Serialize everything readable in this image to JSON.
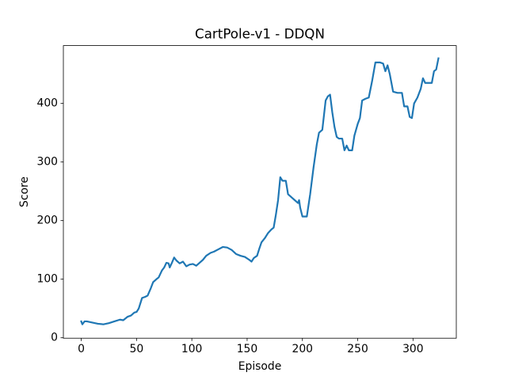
{
  "chart_data": {
    "type": "line",
    "title": "CartPole-v1 - DDQN",
    "x_label": "Episode",
    "y_label": "Score",
    "color": "#1f77b4",
    "x": [
      0,
      1,
      3,
      5,
      10,
      15,
      20,
      25,
      30,
      35,
      38,
      42,
      45,
      48,
      50,
      52,
      55,
      58,
      60,
      63,
      65,
      68,
      70,
      73,
      75,
      77,
      79,
      80,
      82,
      84,
      86,
      89,
      92,
      95,
      98,
      101,
      104,
      107,
      110,
      113,
      117,
      120,
      124,
      128,
      132,
      136,
      140,
      144,
      148,
      152,
      154,
      156,
      159,
      161,
      163,
      166,
      169,
      172,
      174,
      176,
      178,
      180,
      182,
      185,
      187,
      190,
      193,
      196,
      197,
      198,
      200,
      204,
      207,
      210,
      213,
      215,
      218,
      221,
      223,
      225,
      227,
      229,
      231,
      233,
      236,
      238,
      240,
      242,
      245,
      247,
      250,
      252,
      254,
      257,
      260,
      263,
      266,
      270,
      273,
      275,
      277,
      279,
      282,
      286,
      290,
      292,
      295,
      297,
      299,
      301,
      304,
      307,
      309,
      311,
      314,
      317,
      319,
      321,
      323
    ],
    "values": [
      28,
      23,
      28,
      28,
      26,
      24,
      23,
      25,
      28,
      31,
      30,
      36,
      38,
      43,
      44,
      50,
      68,
      70,
      72,
      85,
      95,
      100,
      103,
      115,
      120,
      128,
      127,
      120,
      128,
      137,
      132,
      127,
      130,
      122,
      125,
      126,
      123,
      128,
      133,
      140,
      145,
      147,
      151,
      155,
      154,
      150,
      143,
      140,
      138,
      133,
      130,
      136,
      140,
      152,
      163,
      170,
      179,
      185,
      188,
      210,
      235,
      274,
      268,
      268,
      245,
      240,
      235,
      230,
      235,
      222,
      207,
      207,
      245,
      290,
      330,
      350,
      355,
      405,
      412,
      415,
      385,
      360,
      343,
      340,
      340,
      320,
      328,
      320,
      320,
      345,
      365,
      375,
      405,
      408,
      410,
      438,
      470,
      470,
      468,
      455,
      465,
      450,
      420,
      418,
      418,
      395,
      395,
      377,
      375,
      400,
      410,
      425,
      443,
      435,
      435,
      435,
      455,
      458,
      477
    ],
    "xlim": [
      -16.15,
      339.15
    ],
    "ylim": [
      -0.7,
      498.7
    ],
    "xticks": [
      0,
      50,
      100,
      150,
      200,
      250,
      300
    ],
    "yticks": [
      0,
      100,
      200,
      300,
      400
    ],
    "grid": false
  }
}
